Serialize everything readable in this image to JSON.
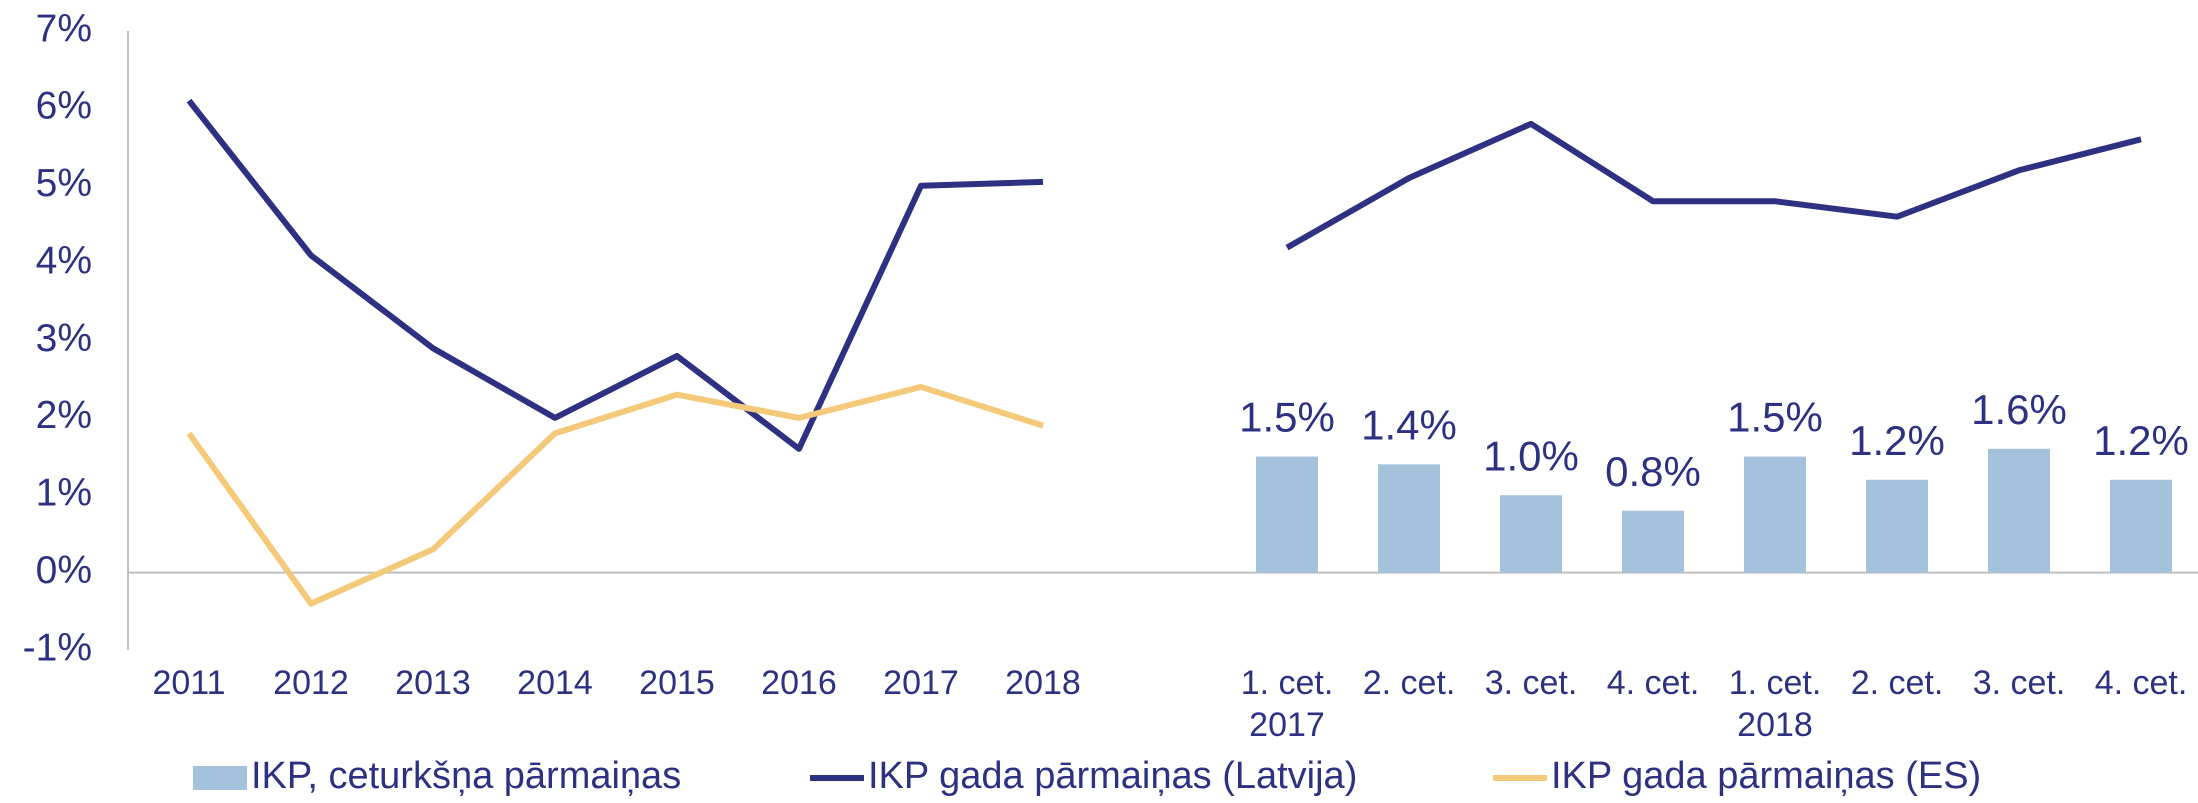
{
  "chart_data": {
    "type": "bar_line",
    "categories": [
      "2011",
      "2012",
      "2013",
      "2014",
      "2015",
      "2016",
      "2017",
      "2018",
      null,
      "1. cet.",
      "2. cet.",
      "3. cet.",
      "4. cet.",
      "1. cet.",
      "2. cet.",
      "3. cet.",
      "4. cet."
    ],
    "x_sublabels": [
      null,
      null,
      null,
      null,
      null,
      null,
      null,
      null,
      null,
      "2017",
      null,
      null,
      null,
      "2018",
      null,
      null,
      null
    ],
    "series": [
      {
        "name": "IKP, ceturkšņa pārmaiņas",
        "type": "bar",
        "color": "#a4c2dc",
        "values": [
          null,
          null,
          null,
          null,
          null,
          null,
          null,
          null,
          null,
          1.5,
          1.4,
          1.0,
          0.8,
          1.5,
          1.2,
          1.6,
          1.2
        ],
        "value_labels": [
          null,
          null,
          null,
          null,
          null,
          null,
          null,
          null,
          null,
          "1.5%",
          "1.4%",
          "1.0%",
          "0.8%",
          "1.5%",
          "1.2%",
          "1.6%",
          "1.2%"
        ]
      },
      {
        "name": "IKP gada pārmaiņas (Latvija)",
        "type": "line",
        "color": "#2e3181",
        "values": [
          6.1,
          4.1,
          2.9,
          2.0,
          2.8,
          1.6,
          5.0,
          5.05,
          null,
          4.2,
          5.1,
          5.8,
          4.8,
          4.8,
          4.6,
          5.2,
          5.6
        ]
      },
      {
        "name": "IKP gada pārmaiņas (ES)",
        "type": "line",
        "color": "#f5c97a",
        "values": [
          1.8,
          -0.4,
          0.3,
          1.8,
          2.3,
          2.0,
          2.4,
          1.9,
          null,
          null,
          null,
          null,
          null,
          null,
          null,
          null,
          null
        ]
      }
    ],
    "ylim": [
      -1,
      7
    ],
    "yticks": [
      {
        "value": -1,
        "label": "-1%"
      },
      {
        "value": 0,
        "label": "0%"
      },
      {
        "value": 1,
        "label": "1%"
      },
      {
        "value": 2,
        "label": "2%"
      },
      {
        "value": 3,
        "label": "3%"
      },
      {
        "value": 4,
        "label": "4%"
      },
      {
        "value": 5,
        "label": "5%"
      },
      {
        "value": 6,
        "label": "6%"
      },
      {
        "value": 7,
        "label": "7%"
      }
    ],
    "legend": "bottom"
  }
}
